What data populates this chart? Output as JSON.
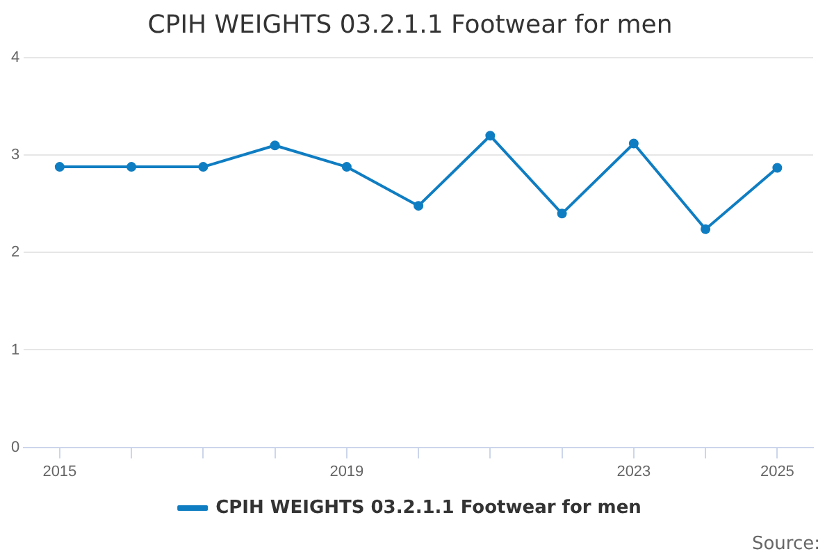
{
  "chart_data": {
    "type": "line",
    "title": "CPIH WEIGHTS 03.2.1.1 Footwear for men",
    "x": [
      2015,
      2016,
      2017,
      2018,
      2019,
      2020,
      2021,
      2022,
      2023,
      2024,
      2025
    ],
    "series": [
      {
        "name": "CPIH WEIGHTS 03.2.1.1 Footwear for men",
        "color": "#0f7dc2",
        "values": [
          2.88,
          2.88,
          2.88,
          3.1,
          2.88,
          2.48,
          3.2,
          2.4,
          3.12,
          2.24,
          2.87
        ]
      }
    ],
    "xlim": [
      2014.5,
      2025.5
    ],
    "xticks": [
      2015,
      {
        "value": 2016,
        "label": null
      },
      {
        "value": 2017,
        "label": null
      },
      {
        "value": 2018,
        "label": null
      },
      2019,
      {
        "value": 2020,
        "label": null
      },
      {
        "value": 2021,
        "label": null
      },
      {
        "value": 2022,
        "label": null
      },
      2023,
      {
        "value": 2024,
        "label": null
      },
      2025
    ],
    "ylim": [
      0,
      4
    ],
    "yticks": [
      0,
      1,
      2,
      3,
      4
    ],
    "grid": "y",
    "legend": "bottom",
    "marker": "circle",
    "line_style": "solid",
    "annotations": [
      "Source:"
    ]
  }
}
